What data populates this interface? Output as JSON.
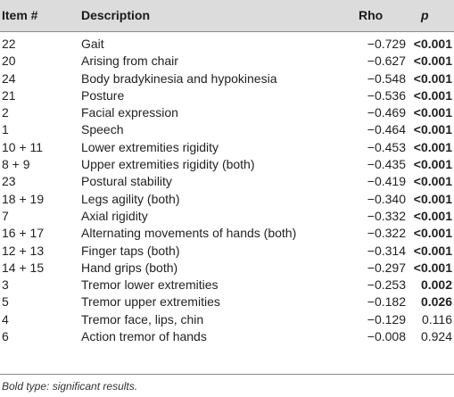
{
  "table": {
    "headers": {
      "item": "Item #",
      "description": "Description",
      "rho": "Rho",
      "p": "p"
    },
    "rows": [
      {
        "item": "22",
        "description": "Gait",
        "rho": "−0.729",
        "p": "<0.001",
        "bold": true
      },
      {
        "item": "20",
        "description": "Arising from chair",
        "rho": "−0.627",
        "p": "<0.001",
        "bold": true
      },
      {
        "item": "24",
        "description": "Body bradykinesia and hypokinesia",
        "rho": "−0.548",
        "p": "<0.001",
        "bold": true
      },
      {
        "item": "21",
        "description": "Posture",
        "rho": "−0.536",
        "p": "<0.001",
        "bold": true
      },
      {
        "item": "2",
        "description": "Facial expression",
        "rho": "−0.469",
        "p": "<0.001",
        "bold": true
      },
      {
        "item": "1",
        "description": "Speech",
        "rho": "−0.464",
        "p": "<0.001",
        "bold": true
      },
      {
        "item": "10 + 11",
        "description": "Lower extremities rigidity",
        "rho": "−0.453",
        "p": "<0.001",
        "bold": true
      },
      {
        "item": "8 + 9",
        "description": "Upper extremities rigidity (both)",
        "rho": "−0.435",
        "p": "<0.001",
        "bold": true
      },
      {
        "item": "23",
        "description": "Postural stability",
        "rho": "−0.419",
        "p": "<0.001",
        "bold": true
      },
      {
        "item": "18 + 19",
        "description": "Legs agility (both)",
        "rho": "−0.340",
        "p": "<0.001",
        "bold": true
      },
      {
        "item": "7",
        "description": "Axial rigidity",
        "rho": "−0.332",
        "p": "<0.001",
        "bold": true
      },
      {
        "item": "16 + 17",
        "description": "Alternating movements of hands (both)",
        "rho": "−0.322",
        "p": "<0.001",
        "bold": true
      },
      {
        "item": "12 + 13",
        "description": "Finger taps (both)",
        "rho": "−0.314",
        "p": "<0.001",
        "bold": true
      },
      {
        "item": "14 + 15",
        "description": "Hand grips (both)",
        "rho": "−0.297",
        "p": "<0.001",
        "bold": true
      },
      {
        "item": "3",
        "description": "Tremor lower extremities",
        "rho": "−0.253",
        "p": "0.002",
        "bold": true
      },
      {
        "item": "5",
        "description": "Tremor upper extremities",
        "rho": "−0.182",
        "p": "0.026",
        "bold": true
      },
      {
        "item": "4",
        "description": "Tremor face, lips, chin",
        "rho": "−0.129",
        "p": "0.116",
        "bold": false
      },
      {
        "item": "6",
        "description": "Action tremor of hands",
        "rho": "−0.008",
        "p": "0.924",
        "bold": false
      }
    ]
  },
  "footnote": "Bold type: significant results."
}
